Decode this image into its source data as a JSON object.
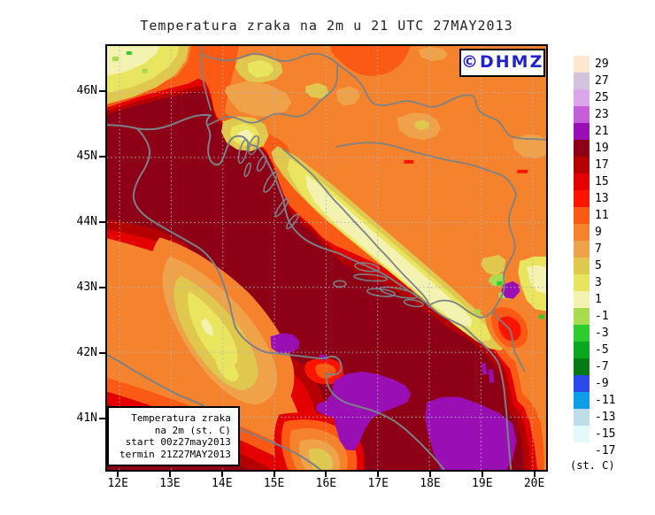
{
  "title": "Temperatura zraka na 2m u 21 UTC 27MAY2013",
  "watermark": {
    "text": "©DHMZ",
    "color": "#2222D0"
  },
  "axes": {
    "lat_labels": [
      "46N",
      "45N",
      "44N",
      "43N",
      "42N",
      "41N"
    ],
    "lon_labels": [
      "12E",
      "13E",
      "14E",
      "15E",
      "16E",
      "17E",
      "18E",
      "19E",
      "20E"
    ]
  },
  "info_box": {
    "lines": [
      "Temperatura zraka",
      "na 2m (st. C)",
      "start 00z27may2013",
      "termin 21Z27MAY2013"
    ]
  },
  "colorbar": {
    "unit": "(st. C)",
    "levels": [
      {
        "label": "29",
        "color": "#FBE8CE"
      },
      {
        "label": "27",
        "color": "#D3C3DF"
      },
      {
        "label": "25",
        "color": "#DDA6E8"
      },
      {
        "label": "23",
        "color": "#C45FD9"
      },
      {
        "label": "21",
        "color": "#9A0FB4"
      },
      {
        "label": "19",
        "color": "#8E0016"
      },
      {
        "label": "17",
        "color": "#B40000"
      },
      {
        "label": "15",
        "color": "#E40000"
      },
      {
        "label": "13",
        "color": "#FB1500"
      },
      {
        "label": "11",
        "color": "#FA5A14"
      },
      {
        "label": "9",
        "color": "#F5832D"
      },
      {
        "label": "7",
        "color": "#F0A24A"
      },
      {
        "label": "5",
        "color": "#E0C84E"
      },
      {
        "label": "3",
        "color": "#E9E55F"
      },
      {
        "label": "1",
        "color": "#F3F2B0"
      },
      {
        "label": "-1",
        "color": "#A8DB50"
      },
      {
        "label": "-3",
        "color": "#2ECC2E"
      },
      {
        "label": "-5",
        "color": "#0AA820"
      },
      {
        "label": "-7",
        "color": "#067A14"
      },
      {
        "label": "-9",
        "color": "#2A49E8"
      },
      {
        "label": "-11",
        "color": "#0C9FE8"
      },
      {
        "label": "-13",
        "color": "#BFDDE9"
      },
      {
        "label": "-15",
        "color": "#E4F9FA"
      },
      {
        "label": "-17",
        "color": "#FFFFFF"
      }
    ]
  },
  "map_colors": {
    "grid": "#A9B6C6",
    "coast": "#7A8288",
    "frame": "#000000"
  },
  "chart_data": {
    "type": "heatmap",
    "title": "Temperatura zraka na 2m u 21 UTC 27MAY2013",
    "field": "air temperature at 2 m (st. C)",
    "x_axis": {
      "label": "longitude",
      "ticks": [
        "12E",
        "13E",
        "14E",
        "15E",
        "16E",
        "17E",
        "18E",
        "19E",
        "20E"
      ]
    },
    "y_axis": {
      "label": "latitude",
      "ticks": [
        "46N",
        "45N",
        "44N",
        "43N",
        "42N",
        "41N"
      ]
    },
    "legend_levels_c": [
      29,
      27,
      25,
      23,
      21,
      19,
      17,
      15,
      13,
      11,
      9,
      7,
      5,
      3,
      1,
      -1,
      -3,
      -5,
      -7,
      -9,
      -11,
      -13,
      -15,
      -17
    ],
    "reading": "Adriatic sea and Po valley 17-19 C (dark maroon); purple 21-23 C pockets in the southern Adriatic; coastal belts 13-17 C (red); inland Croatia/Bosnia 9-13 C (orange); Dinarides and Apennine ridges 1-7 C (yellow/gold) with -1 to -3 C green patches; Alps corner pale yellow-green"
  }
}
